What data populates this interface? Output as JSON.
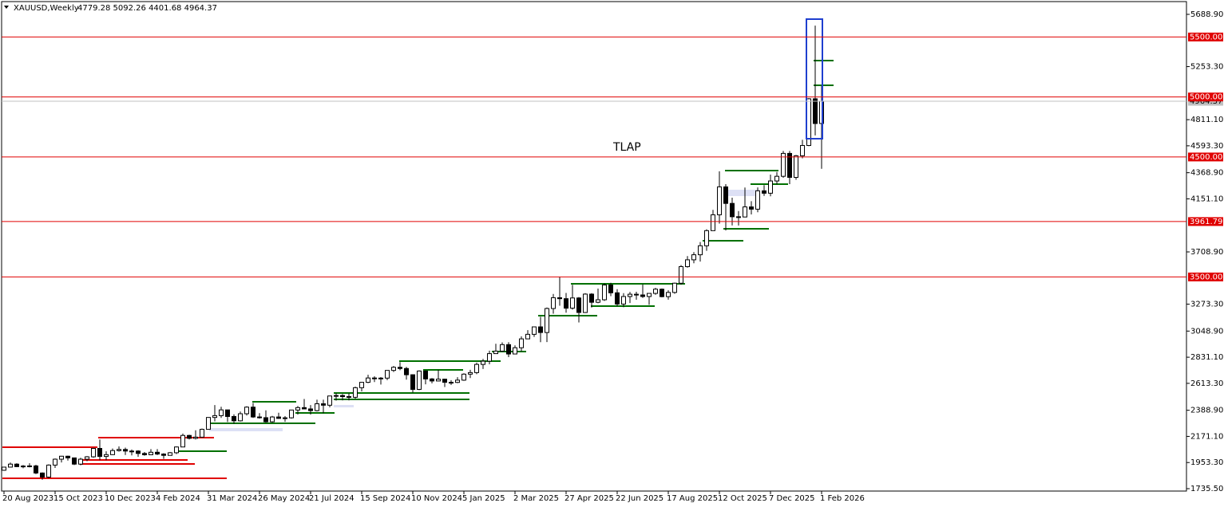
{
  "chart_data": {
    "type": "candlestick",
    "title": "XAUUSD,Weekly",
    "subtitle": "4779.28 5092.26 4401.68 4964.37",
    "annotation": "TLAP",
    "categories": [
      "20 Aug 2023",
      null,
      null,
      null,
      null,
      null,
      null,
      null,
      "15 Oct 2023",
      null,
      null,
      null,
      null,
      null,
      null,
      null,
      "10 Dec 2023",
      null,
      null,
      null,
      null,
      null,
      null,
      null,
      "4 Feb 2024",
      null,
      null,
      null,
      null,
      null,
      null,
      null,
      "31 Mar 2024",
      null,
      null,
      null,
      null,
      null,
      null,
      null,
      "26 May 2024",
      null,
      null,
      null,
      null,
      null,
      null,
      null,
      "21 Jul 2024",
      null,
      null,
      null,
      null,
      null,
      null,
      null,
      "15 Sep 2024",
      null,
      null,
      null,
      null,
      null,
      null,
      null,
      "10 Nov 2024",
      null,
      null,
      null,
      null,
      null,
      null,
      null,
      "5 Jan 2025",
      null,
      null,
      null,
      null,
      null,
      null,
      null,
      "2 Mar 2025",
      null,
      null,
      null,
      null,
      null,
      null,
      null,
      "27 Apr 2025",
      null,
      null,
      null,
      null,
      null,
      null,
      null,
      "22 Jun 2025",
      null,
      null,
      null,
      null,
      null,
      null,
      null,
      "17 Aug 2025",
      null,
      null,
      null,
      null,
      null,
      null,
      null,
      "12 Oct 2025",
      null,
      null,
      null,
      null,
      null,
      null,
      null,
      "7 Dec 2025",
      null,
      null,
      null,
      null,
      null,
      null,
      null,
      "1 Feb 2026"
    ],
    "open": [
      1889,
      1915,
      1940,
      1919,
      1924,
      1925,
      1866,
      1832,
      1932,
      1981,
      2006,
      1992,
      1940,
      1981,
      2001,
      2071,
      2004,
      2019,
      2053,
      2062,
      2049,
      2049,
      2029,
      2018,
      2039,
      2024,
      2013,
      2035,
      2083,
      2179,
      2155,
      2165,
      2230,
      2329,
      2344,
      2392,
      2337,
      2301,
      2360,
      2415,
      2333,
      2327,
      2293,
      2333,
      2321,
      2326,
      2391,
      2411,
      2400,
      2386,
      2443,
      2431,
      2508,
      2512,
      2503,
      2497,
      2577,
      2622,
      2658,
      2653,
      2657,
      2721,
      2747,
      2737,
      2685,
      2563,
      2716,
      2650,
      2633,
      2648,
      2622,
      2621,
      2640,
      2690,
      2703,
      2771,
      2798,
      2861,
      2882,
      2936,
      2858,
      2910,
      2984,
      3022,
      3084,
      3037,
      3237,
      3327,
      3319,
      3240,
      3325,
      3204,
      3357,
      3289,
      3310,
      3433,
      3368,
      3274,
      3337,
      3356,
      3350,
      3337,
      3363,
      3398,
      3336,
      3371,
      3448,
      3586,
      3643,
      3685,
      3760,
      3886,
      4018,
      4251,
      4113,
      4002,
      4000,
      4084,
      4065,
      4218,
      4198,
      4300,
      4339,
      4530,
      4330,
      4510,
      4596,
      4985,
      4779.28
    ],
    "high": [
      1917,
      1953,
      1947,
      1932,
      1947,
      1935,
      1871,
      1938,
      1987,
      2009,
      2010,
      1993,
      1993,
      2007,
      2075,
      2145,
      2047,
      2070,
      2088,
      2078,
      2062,
      2056,
      2041,
      2065,
      2065,
      2031,
      2041,
      2088,
      2195,
      2185,
      2222,
      2236,
      2331,
      2432,
      2418,
      2392,
      2355,
      2378,
      2422,
      2450,
      2365,
      2388,
      2342,
      2368,
      2340,
      2392,
      2424,
      2483,
      2432,
      2477,
      2477,
      2509,
      2531,
      2524,
      2529,
      2586,
      2625,
      2685,
      2672,
      2666,
      2722,
      2758,
      2790,
      2750,
      2689,
      2721,
      2721,
      2657,
      2726,
      2652,
      2640,
      2665,
      2697,
      2726,
      2786,
      2817,
      2886,
      2943,
      2955,
      2956,
      2930,
      3005,
      3057,
      3086,
      3168,
      3245,
      3358,
      3500,
      3367,
      3435,
      3333,
      3365,
      3365,
      3403,
      3446,
      3451,
      3398,
      3365,
      3375,
      3377,
      3438,
      3363,
      3409,
      3404,
      3389,
      3453,
      3599,
      3674,
      3707,
      3791,
      3897,
      4059,
      4381,
      4274,
      4161,
      4049,
      4245,
      4132,
      4246,
      4265,
      4353,
      4375,
      4550,
      4550,
      4517,
      4643,
      4990,
      5595,
      5092.26
    ],
    "low": [
      1884,
      1913,
      1915,
      1906,
      1913,
      1857,
      1810,
      1823,
      1908,
      1954,
      1970,
      1932,
      1931,
      1965,
      1993,
      1973,
      1973,
      2016,
      2044,
      2016,
      2013,
      2001,
      2010,
      2016,
      2015,
      1984,
      2011,
      2024,
      2083,
      2146,
      2146,
      2163,
      2228,
      2296,
      2325,
      2291,
      2277,
      2295,
      2345,
      2325,
      2319,
      2286,
      2286,
      2317,
      2293,
      2319,
      2353,
      2397,
      2353,
      2379,
      2364,
      2413,
      2470,
      2471,
      2471,
      2485,
      2546,
      2615,
      2624,
      2603,
      2640,
      2708,
      2723,
      2644,
      2536,
      2557,
      2605,
      2613,
      2630,
      2583,
      2600,
      2615,
      2634,
      2657,
      2690,
      2733,
      2772,
      2859,
      2877,
      2832,
      2857,
      2880,
      2982,
      3000,
      2956,
      2957,
      3194,
      3260,
      3202,
      3228,
      3121,
      3200,
      3245,
      3281,
      3300,
      3340,
      3255,
      3248,
      3283,
      3310,
      3325,
      3268,
      3352,
      3330,
      3311,
      3360,
      3436,
      3578,
      3614,
      3628,
      3718,
      3885,
      3945,
      3887,
      3930,
      3929,
      3997,
      4021,
      4039,
      4176,
      4172,
      4271,
      4327,
      4274,
      4310,
      4489,
      4590,
      4680,
      4401.68
    ],
    "close": [
      1915,
      1940,
      1919,
      1924,
      1925,
      1866,
      1832,
      1932,
      1981,
      2006,
      1992,
      1940,
      1981,
      2001,
      2071,
      2004,
      2019,
      2053,
      2062,
      2049,
      2049,
      2029,
      2018,
      2039,
      2024,
      2013,
      2035,
      2083,
      2179,
      2155,
      2165,
      2230,
      2329,
      2344,
      2392,
      2337,
      2301,
      2360,
      2415,
      2333,
      2327,
      2293,
      2333,
      2321,
      2326,
      2391,
      2411,
      2400,
      2386,
      2443,
      2431,
      2508,
      2512,
      2503,
      2497,
      2577,
      2622,
      2658,
      2653,
      2657,
      2721,
      2747,
      2737,
      2685,
      2563,
      2716,
      2650,
      2633,
      2648,
      2622,
      2621,
      2640,
      2690,
      2703,
      2771,
      2798,
      2861,
      2882,
      2936,
      2858,
      2910,
      2984,
      3022,
      3084,
      3037,
      3237,
      3327,
      3319,
      3240,
      3325,
      3204,
      3357,
      3289,
      3310,
      3433,
      3368,
      3274,
      3337,
      3356,
      3350,
      3337,
      3363,
      3398,
      3336,
      3371,
      3448,
      3586,
      3643,
      3685,
      3760,
      3886,
      4018,
      4251,
      4113,
      4002,
      4000,
      4084,
      4065,
      4218,
      4198,
      4300,
      4339,
      4530,
      4330,
      4510,
      4596,
      4985,
      4779,
      4964.37
    ],
    "up_color": "#ffffff",
    "down_color": "#000000",
    "wick_color": "#000000",
    "ylim": [
      1715.5,
      5795.2
    ],
    "yticks": [
      {
        "value": 5688.9,
        "label": "5688.90"
      },
      {
        "value": 5253.3,
        "label": "5253.30"
      },
      {
        "value": 4811.1,
        "label": "4811.10"
      },
      {
        "value": 4593.3,
        "label": "4593.30"
      },
      {
        "value": 4368.9,
        "label": "4368.90"
      },
      {
        "value": 4151.1,
        "label": "4151.10"
      },
      {
        "value": 3708.9,
        "label": "3708.90"
      },
      {
        "value": 3273.3,
        "label": "3273.30"
      },
      {
        "value": 3048.9,
        "label": "3048.90"
      },
      {
        "value": 2831.1,
        "label": "2831.10"
      },
      {
        "value": 2613.3,
        "label": "2613.30"
      },
      {
        "value": 2388.9,
        "label": "2388.90"
      },
      {
        "value": 2171.1,
        "label": "2171.10"
      },
      {
        "value": 1953.3,
        "label": "1953.30"
      },
      {
        "value": 1735.5,
        "label": "1735.50"
      }
    ],
    "current_price": {
      "value": 4964.37,
      "label": "4964.37",
      "color": "#c0c0c0"
    },
    "levels": [
      {
        "value": 5500,
        "label": "5500.00"
      },
      {
        "value": 5000,
        "label": "5000.00"
      },
      {
        "value": 4500,
        "label": "4500.00"
      },
      {
        "value": 3961.79,
        "label": "3961.79"
      },
      {
        "value": 3500,
        "label": "3500.00"
      }
    ],
    "level_color": "#e00000"
  }
}
